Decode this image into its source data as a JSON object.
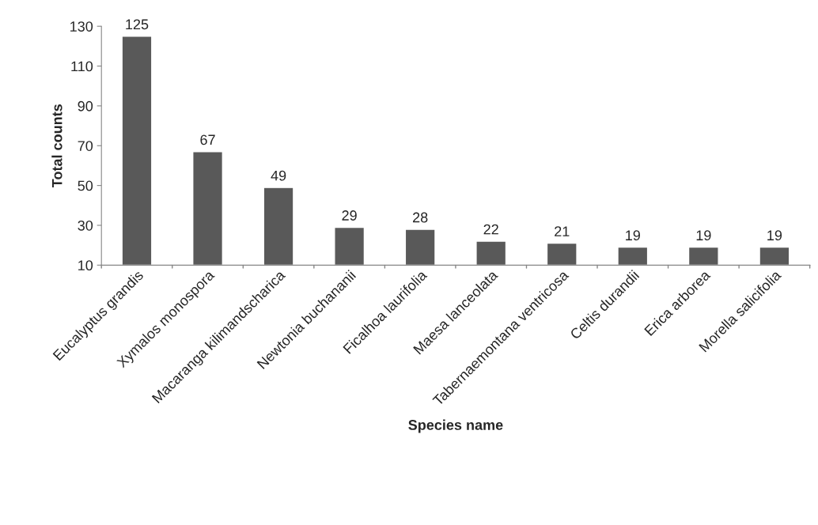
{
  "chart_data": {
    "type": "bar",
    "xlabel": "Species name",
    "ylabel": "Total counts",
    "categories": [
      "Eucalyptus grandis",
      "Xymalos monospora",
      "Macaranga kilimandscharica",
      "Newtonia buchananii",
      "Ficalhoa laurifolia",
      "Maesa lanceolata",
      "Tabernaemontana ventricosa",
      "Celtis durandii",
      "Erica arborea",
      "Morella salicifolia"
    ],
    "values": [
      125,
      67,
      49,
      29,
      28,
      22,
      21,
      19,
      19,
      19
    ],
    "color": "#595959",
    "ylim": [
      10,
      130
    ],
    "yticks": [
      10,
      30,
      50,
      70,
      90,
      110,
      130
    ],
    "grid": false,
    "data_labels": true
  }
}
